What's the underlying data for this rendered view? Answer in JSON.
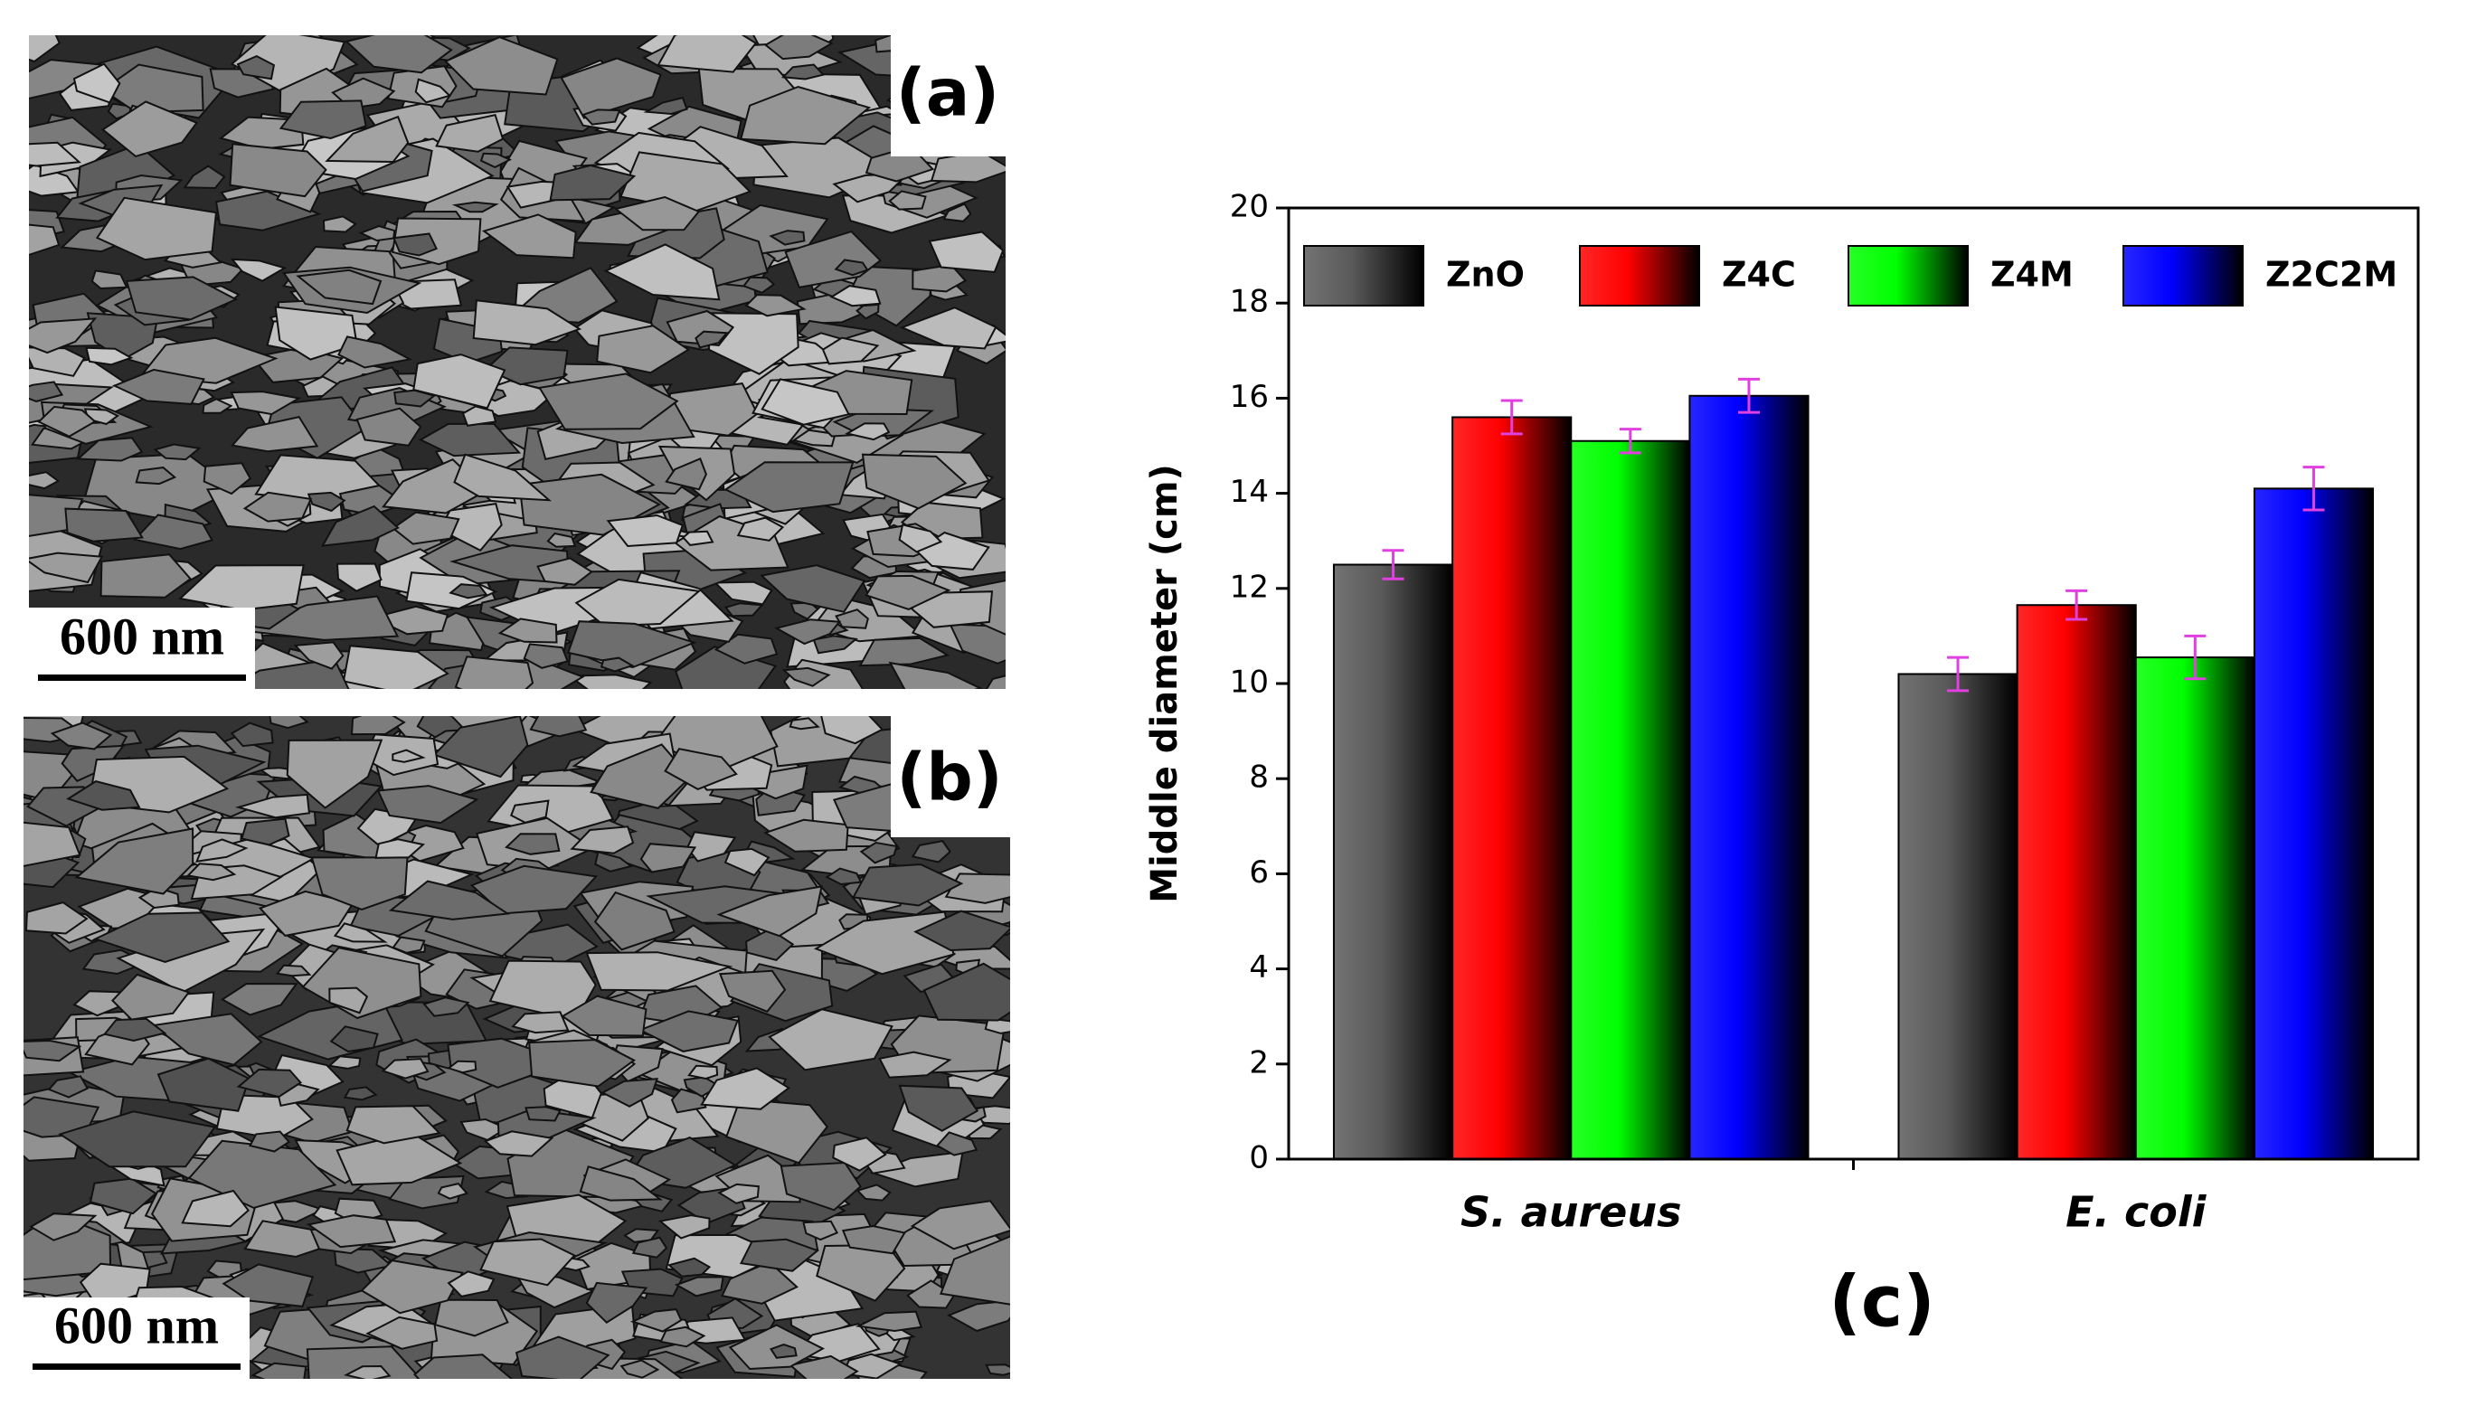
{
  "panel_a": {
    "label": "(a)",
    "scale_bar": "600 nm"
  },
  "panel_b": {
    "label": "(b)",
    "scale_bar": "600 nm"
  },
  "chart_data": {
    "type": "bar",
    "panel_label": "(c)",
    "y_label": "Middle diameter (cm)",
    "categories": [
      "S. aureus",
      "E. coli"
    ],
    "series": [
      {
        "name": "ZnO",
        "color": "#5a5a5a",
        "values": [
          12.5,
          10.2
        ],
        "errors": [
          0.3,
          0.35
        ]
      },
      {
        "name": "Z4C",
        "color": "#ff0000",
        "values": [
          15.6,
          11.65
        ],
        "errors": [
          0.35,
          0.3
        ]
      },
      {
        "name": "Z4M",
        "color": "#00ff00",
        "values": [
          15.1,
          10.55
        ],
        "errors": [
          0.25,
          0.45
        ]
      },
      {
        "name": "Z2C2M",
        "color": "#0000ff",
        "values": [
          16.05,
          14.1
        ],
        "errors": [
          0.35,
          0.45
        ]
      }
    ],
    "error_color": "#e040e0",
    "ylim": [
      0,
      20
    ],
    "yticks": [
      0,
      2,
      4,
      6,
      8,
      10,
      12,
      14,
      16,
      18,
      20
    ]
  }
}
